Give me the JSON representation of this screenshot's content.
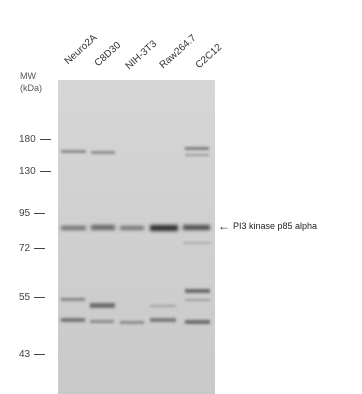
{
  "mw_title": {
    "line1": "MW",
    "line2": "(kDa)"
  },
  "lanes": [
    "Neuro2A",
    "C8D30",
    "NIH-3T3",
    "Raw264.7",
    "C2C12"
  ],
  "markers": [
    "180",
    "130",
    "95",
    "72",
    "55",
    "43"
  ],
  "target_label": "PI3 kinase p85 alpha",
  "colors": {
    "blot_background": "#cfcfcf",
    "band": "#5a5a5a",
    "text": "#333333"
  }
}
